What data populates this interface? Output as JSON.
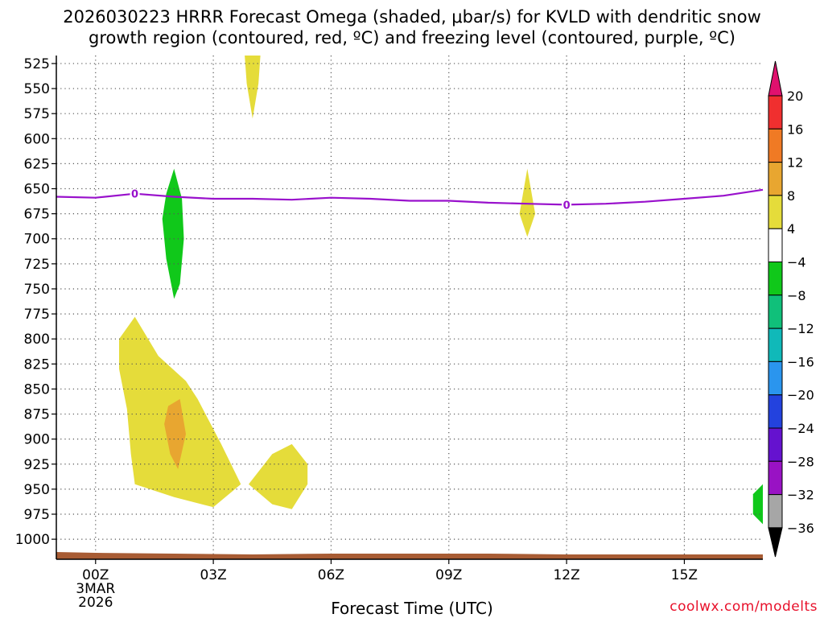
{
  "title": {
    "line1": "2026030223 HRRR Forecast Omega (shaded, μbar/s) for KVLD with dendritic snow",
    "line2": "growth region (contoured, red, ºC) and freezing level (contoured, purple, ºC)"
  },
  "credit": "coolwx.com/modelts",
  "chart_data": {
    "type": "time-height contour",
    "title": "2026030223 HRRR Forecast Omega (shaded, μbar/s) for KVLD with dendritic snow growth region (contoured, red, ºC) and freezing level (contoured, purple, ºC)",
    "xlabel": "Forecast Time (UTC)",
    "ylabel": "",
    "x_ticks": [
      {
        "hour": 0,
        "label": "00Z"
      },
      {
        "hour": 3,
        "label": "03Z"
      },
      {
        "hour": 6,
        "label": "06Z"
      },
      {
        "hour": 9,
        "label": "09Z"
      },
      {
        "hour": 12,
        "label": "12Z"
      },
      {
        "hour": 15,
        "label": "15Z"
      }
    ],
    "x_date": [
      "3MAR",
      "2026"
    ],
    "xlim": [
      -1,
      17
    ],
    "y_ticks": [
      525,
      550,
      575,
      600,
      625,
      650,
      675,
      700,
      725,
      750,
      775,
      800,
      825,
      850,
      875,
      900,
      925,
      950,
      975,
      1000
    ],
    "ylim": [
      517,
      1020
    ],
    "colorbar": {
      "labels": [
        "20",
        "16",
        "12",
        "8",
        "4",
        "−4",
        "−8",
        "−12",
        "−16",
        "−20",
        "−24",
        "−28",
        "−32",
        "−36"
      ],
      "colors_top_to_bottom": [
        "#e0116e",
        "#f02f2f",
        "#f07a24",
        "#e8a630",
        "#e5dc3a",
        "#ffffff",
        "#10c81a",
        "#10c07a",
        "#10b9b9",
        "#2a95ee",
        "#2342de",
        "#6512cf",
        "#9912c4",
        "#a6a6a6",
        "#000000"
      ]
    },
    "freezing_level": {
      "label": "0",
      "color": "#9911cc",
      "points": [
        [
          -1,
          658
        ],
        [
          0,
          659
        ],
        [
          1,
          655
        ],
        [
          2,
          658
        ],
        [
          3,
          660
        ],
        [
          4,
          660
        ],
        [
          5,
          661
        ],
        [
          6,
          659
        ],
        [
          7,
          660
        ],
        [
          8,
          662
        ],
        [
          9,
          662
        ],
        [
          10,
          664
        ],
        [
          11,
          665
        ],
        [
          12,
          666
        ],
        [
          13,
          665
        ],
        [
          14,
          663
        ],
        [
          15,
          660
        ],
        [
          16,
          657
        ],
        [
          17,
          651
        ]
      ]
    },
    "omega_regions": [
      {
        "value_range": "4 to 8",
        "color": "#e5dc3a",
        "points": [
          [
            3.8,
            517
          ],
          [
            4.2,
            517
          ],
          [
            4.15,
            545
          ],
          [
            4.0,
            580
          ],
          [
            3.85,
            545
          ]
        ]
      },
      {
        "value_range": "-8 to -4",
        "color": "#10c81a",
        "points": [
          [
            2.0,
            630
          ],
          [
            2.2,
            660
          ],
          [
            2.25,
            700
          ],
          [
            2.15,
            745
          ],
          [
            2.0,
            760
          ],
          [
            1.8,
            720
          ],
          [
            1.7,
            680
          ],
          [
            1.8,
            655
          ]
        ]
      },
      {
        "value_range": "4 to 8",
        "color": "#e5dc3a",
        "points": [
          [
            11.0,
            630
          ],
          [
            11.2,
            675
          ],
          [
            11.0,
            698
          ],
          [
            10.8,
            675
          ]
        ]
      },
      {
        "value_range": "4 to 8",
        "color": "#e5dc3a",
        "points": [
          [
            1.0,
            778
          ],
          [
            1.6,
            817
          ],
          [
            2.3,
            842
          ],
          [
            2.6,
            860
          ],
          [
            3.2,
            905
          ],
          [
            3.7,
            945
          ],
          [
            3.0,
            968
          ],
          [
            2.0,
            958
          ],
          [
            1.0,
            945
          ],
          [
            0.9,
            915
          ],
          [
            0.8,
            870
          ],
          [
            0.6,
            830
          ],
          [
            0.6,
            800
          ]
        ]
      },
      {
        "value_range": "8 to 12",
        "color": "#e8a630",
        "points": [
          [
            1.85,
            867
          ],
          [
            2.15,
            860
          ],
          [
            2.3,
            895
          ],
          [
            2.1,
            930
          ],
          [
            1.9,
            915
          ],
          [
            1.75,
            885
          ]
        ]
      },
      {
        "value_range": "4 to 8",
        "color": "#e5dc3a",
        "points": [
          [
            3.9,
            945
          ],
          [
            4.5,
            915
          ],
          [
            5.0,
            905
          ],
          [
            5.4,
            925
          ],
          [
            5.4,
            945
          ],
          [
            5.0,
            970
          ],
          [
            4.5,
            965
          ]
        ]
      },
      {
        "value_range": "-8 to -4",
        "color": "#10c81a",
        "points": [
          [
            17.0,
            945
          ],
          [
            17.0,
            985
          ],
          [
            16.75,
            975
          ],
          [
            16.75,
            955
          ]
        ]
      }
    ],
    "terrain_color": "#a85c34"
  }
}
